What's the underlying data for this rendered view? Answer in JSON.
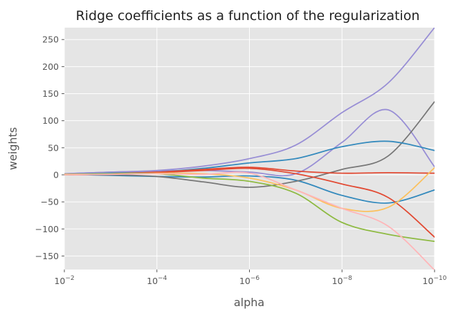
{
  "chart_data": {
    "type": "line",
    "title": "Ridge coefficients as a function of the regularization",
    "xlabel": "alpha",
    "ylabel": "weights",
    "x_scale": "log",
    "x_reversed": true,
    "xlim": [
      0.01,
      1e-10
    ],
    "ylim": [
      -175,
      272
    ],
    "x_ticks": [
      {
        "value": 0.01,
        "base": "10",
        "exp": "−2"
      },
      {
        "value": 0.0001,
        "base": "10",
        "exp": "−4"
      },
      {
        "value": 1e-06,
        "base": "10",
        "exp": "−6"
      },
      {
        "value": 1e-08,
        "base": "10",
        "exp": "−8"
      },
      {
        "value": 1e-10,
        "base": "10",
        "exp": "−10"
      }
    ],
    "y_ticks": [
      {
        "value": 250,
        "label": "250"
      },
      {
        "value": 200,
        "label": "200"
      },
      {
        "value": 150,
        "label": "150"
      },
      {
        "value": 100,
        "label": "100"
      },
      {
        "value": 50,
        "label": "50"
      },
      {
        "value": 0,
        "label": "0"
      },
      {
        "value": -50,
        "label": "−50"
      },
      {
        "value": -100,
        "label": "−100"
      },
      {
        "value": -150,
        "label": "−150"
      }
    ],
    "grid": true,
    "style": {
      "background": "#e5e5e5",
      "grid_color": "#ffffff"
    },
    "x": [
      0.01,
      0.001,
      0.0001,
      1e-05,
      1e-06,
      1e-07,
      1e-08,
      1e-09,
      1e-10
    ],
    "series": [
      {
        "color": "#348abd",
        "values": [
          1,
          -1,
          -3,
          -4,
          -2,
          -10,
          -38,
          -52,
          -28
        ]
      },
      {
        "color": "#988ed5",
        "values": [
          2,
          5,
          7,
          8,
          5,
          2,
          60,
          120,
          15
        ]
      },
      {
        "color": "#988ed5",
        "values": [
          2,
          5,
          8,
          16,
          30,
          55,
          115,
          170,
          272
        ]
      },
      {
        "color": "#777777",
        "values": [
          1,
          0,
          -3,
          -13,
          -23,
          -12,
          10,
          35,
          135
        ]
      },
      {
        "color": "#348abd",
        "values": [
          1,
          3,
          5,
          12,
          22,
          30,
          52,
          62,
          45
        ]
      },
      {
        "color": "#e24a33",
        "values": [
          0,
          2,
          5,
          10,
          14,
          7,
          3,
          4,
          3
        ]
      },
      {
        "color": "#e24a33",
        "values": [
          0,
          1,
          4,
          8,
          12,
          2,
          -17,
          -42,
          -115
        ]
      },
      {
        "color": "#fbc15e",
        "values": [
          1,
          2,
          3,
          2,
          -6,
          -28,
          -62,
          -60,
          13
        ]
      },
      {
        "color": "#8eba42",
        "values": [
          0,
          2,
          2,
          -6,
          -12,
          -34,
          -88,
          -110,
          -123
        ]
      },
      {
        "color": "#ffb5b8",
        "values": [
          0,
          1,
          2,
          1,
          3,
          -28,
          -62,
          -95,
          -176
        ]
      }
    ]
  }
}
